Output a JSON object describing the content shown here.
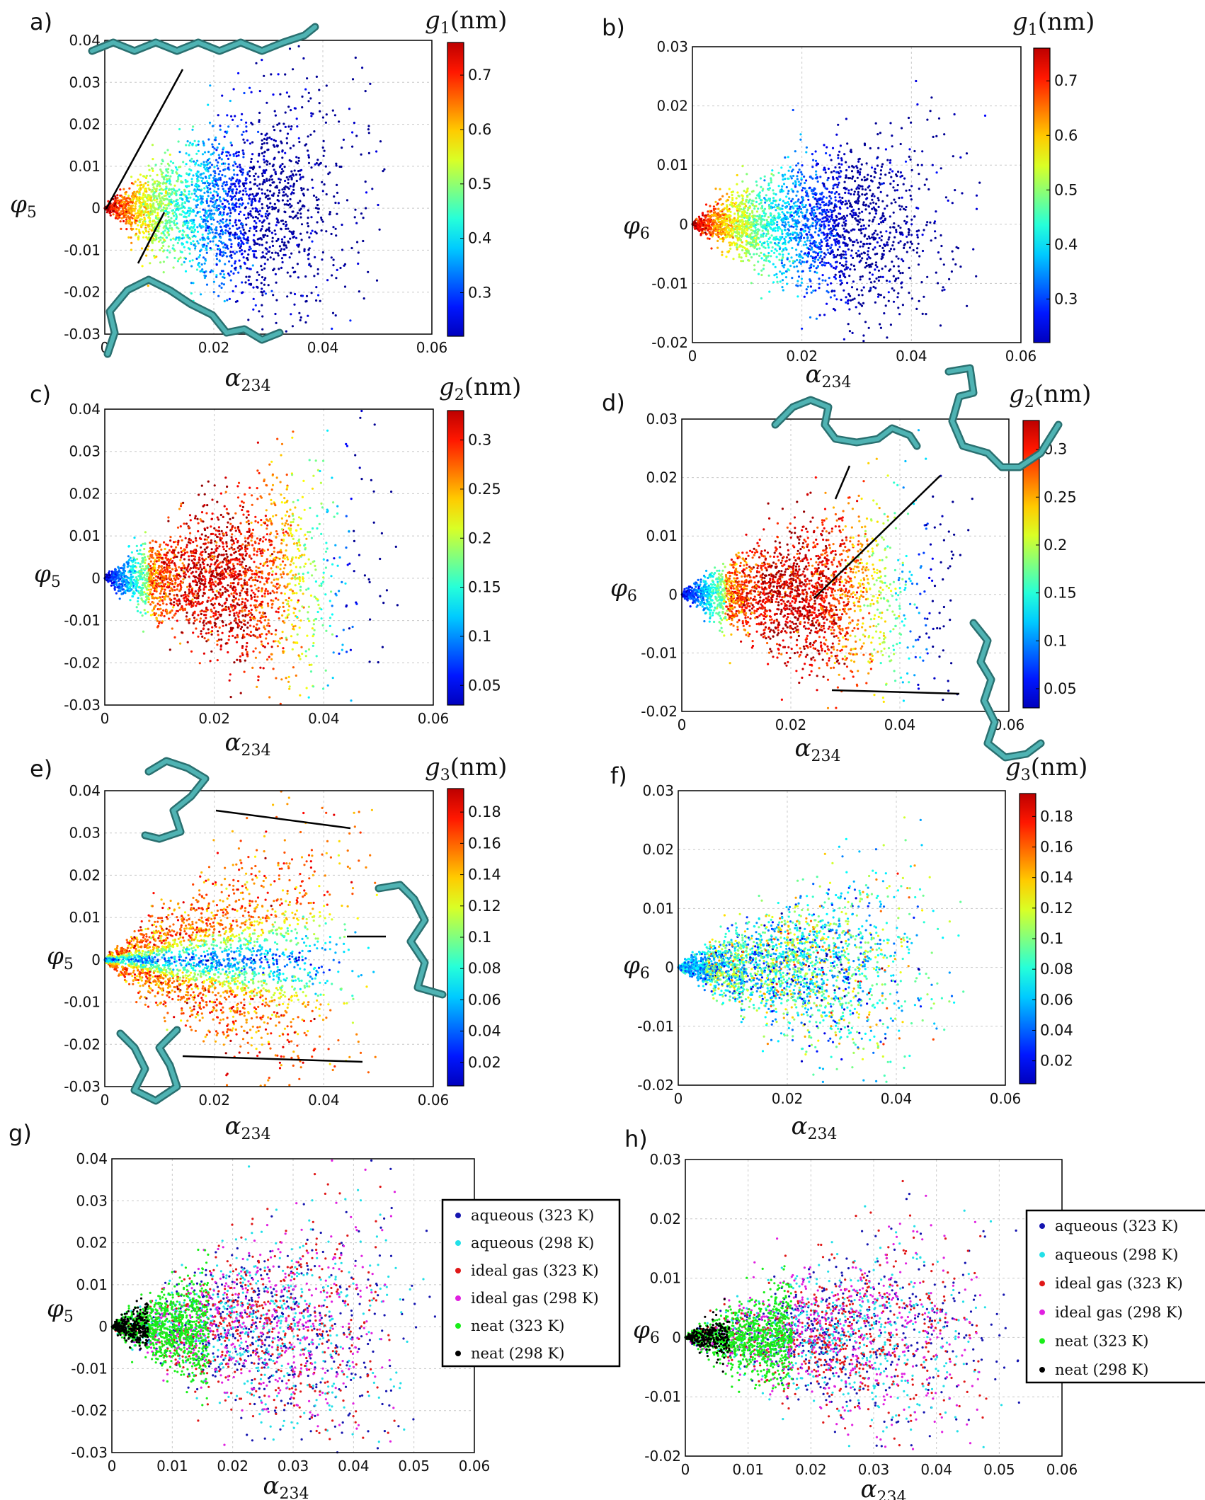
{
  "figure": {
    "panels": [
      {
        "id": "a",
        "label": "a)",
        "y_symbol": "φ",
        "y_sub": "5",
        "x_symbol": "α",
        "x_sub": "234",
        "colorbar": {
          "symbol": "g",
          "sub": "1",
          "unit": "(nm)",
          "ticks": [
            "0.3",
            "0.4",
            "0.5",
            "0.6",
            "0.7"
          ]
        },
        "y_ticks": [
          "0.04",
          "0.03",
          "0.02",
          "0.01",
          "0",
          "-0.01",
          "-0.02",
          "-0.03"
        ],
        "x_ticks": [
          "0",
          "0.02",
          "0.04",
          "0.06"
        ]
      },
      {
        "id": "b",
        "label": "b)",
        "y_symbol": "φ",
        "y_sub": "6",
        "x_symbol": "α",
        "x_sub": "234",
        "colorbar": {
          "symbol": "g",
          "sub": "1",
          "unit": "(nm)",
          "ticks": [
            "0.3",
            "0.4",
            "0.5",
            "0.6",
            "0.7"
          ]
        },
        "y_ticks": [
          "0.03",
          "0.02",
          "0.01",
          "0",
          "-0.01",
          "-0.02"
        ],
        "x_ticks": [
          "0",
          "0.02",
          "0.04",
          "0.06"
        ]
      },
      {
        "id": "c",
        "label": "c)",
        "y_symbol": "φ",
        "y_sub": "5",
        "x_symbol": "α",
        "x_sub": "234",
        "colorbar": {
          "symbol": "g",
          "sub": "2",
          "unit": "(nm)",
          "ticks": [
            "0.05",
            "0.1",
            "0.15",
            "0.2",
            "0.25",
            "0.3"
          ]
        },
        "y_ticks": [
          "0.04",
          "0.03",
          "0.02",
          "0.01",
          "0",
          "-0.01",
          "-0.02",
          "-0.03"
        ],
        "x_ticks": [
          "0",
          "0.02",
          "0.04",
          "0.06"
        ]
      },
      {
        "id": "d",
        "label": "d)",
        "y_symbol": "φ",
        "y_sub": "6",
        "x_symbol": "α",
        "x_sub": "234",
        "colorbar": {
          "symbol": "g",
          "sub": "2",
          "unit": "(nm)",
          "ticks": [
            "0.05",
            "0.1",
            "0.15",
            "0.2",
            "0.25",
            "0.3"
          ]
        },
        "y_ticks": [
          "0.03",
          "0.02",
          "0.01",
          "0",
          "-0.01",
          "-0.02"
        ],
        "x_ticks": [
          "0",
          "0.02",
          "0.04",
          "0.06"
        ]
      },
      {
        "id": "e",
        "label": "e)",
        "y_symbol": "φ",
        "y_sub": "5",
        "x_symbol": "α",
        "x_sub": "234",
        "colorbar": {
          "symbol": "g",
          "sub": "3",
          "unit": "(nm)",
          "ticks": [
            "0.02",
            "0.04",
            "0.06",
            "0.08",
            "0.1",
            "0.12",
            "0.14",
            "0.16",
            "0.18"
          ]
        },
        "y_ticks": [
          "0.04",
          "0.03",
          "0.02",
          "0.01",
          "0",
          "-0.01",
          "-0.02",
          "-0.03"
        ],
        "x_ticks": [
          "0",
          "0.02",
          "0.04",
          "0.06"
        ]
      },
      {
        "id": "f",
        "label": "f)",
        "y_symbol": "φ",
        "y_sub": "6",
        "x_symbol": "α",
        "x_sub": "234",
        "colorbar": {
          "symbol": "g",
          "sub": "3",
          "unit": "(nm)",
          "ticks": [
            "0.02",
            "0.04",
            "0.06",
            "0.08",
            "0.1",
            "0.12",
            "0.14",
            "0.16",
            "0.18"
          ]
        },
        "y_ticks": [
          "0.03",
          "0.02",
          "0.01",
          "0",
          "-0.01",
          "-0.02"
        ],
        "x_ticks": [
          "0",
          "0.02",
          "0.04",
          "0.06"
        ]
      },
      {
        "id": "g",
        "label": "g)",
        "y_symbol": "φ",
        "y_sub": "5",
        "x_symbol": "α",
        "x_sub": "234",
        "legend": [
          "aqueous (323 K)",
          "aqueous (298 K)",
          "ideal gas (323 K)",
          "ideal gas (298 K)",
          "neat (323 K)",
          "neat (298 K)"
        ],
        "y_ticks": [
          "0.04",
          "0.03",
          "0.02",
          "0.01",
          "0",
          "-0.01",
          "-0.02",
          "-0.03"
        ],
        "x_ticks": [
          "0",
          "0.01",
          "0.02",
          "0.03",
          "0.04",
          "0.05",
          "0.06"
        ]
      },
      {
        "id": "h",
        "label": "h)",
        "y_symbol": "φ",
        "y_sub": "6",
        "x_symbol": "α",
        "x_sub": "234",
        "legend": [
          "aqueous (323 K)",
          "aqueous (298 K)",
          "ideal gas (323 K)",
          "ideal gas (298 K)",
          "neat (323 K)",
          "neat (298 K)"
        ],
        "y_ticks": [
          "0.03",
          "0.02",
          "0.01",
          "0",
          "-0.01",
          "-0.02"
        ],
        "x_ticks": [
          "0",
          "0.01",
          "0.02",
          "0.03",
          "0.04",
          "0.05",
          "0.06"
        ]
      }
    ]
  },
  "chart_data": [
    {
      "type": "scatter",
      "panel": "a",
      "xlabel": "α234",
      "ylabel": "φ5",
      "xlim": [
        0,
        0.06
      ],
      "ylim": [
        -0.03,
        0.04
      ],
      "grid": true,
      "color_variable": "g1 (nm)",
      "color_range": [
        0.22,
        0.76
      ],
      "colormap": "jet",
      "color_trend": "decreasing_with_x",
      "envelope": {
        "x_max": 0.052,
        "spread_at_max": 0.032
      }
    },
    {
      "type": "scatter",
      "panel": "b",
      "xlabel": "α234",
      "ylabel": "φ6",
      "xlim": [
        0,
        0.06
      ],
      "ylim": [
        -0.02,
        0.03
      ],
      "grid": true,
      "color_variable": "g1 (nm)",
      "color_range": [
        0.22,
        0.76
      ],
      "colormap": "jet",
      "color_trend": "decreasing_with_x",
      "envelope": {
        "x_max": 0.054,
        "spread_at_max": 0.019
      }
    },
    {
      "type": "scatter",
      "panel": "c",
      "xlabel": "α234",
      "ylabel": "φ5",
      "xlim": [
        0,
        0.06
      ],
      "ylim": [
        -0.03,
        0.04
      ],
      "grid": true,
      "color_variable": "g2 (nm)",
      "color_range": [
        0.03,
        0.33
      ],
      "colormap": "jet",
      "color_trend": "peak_at_x_0.02",
      "envelope": {
        "x_max": 0.054,
        "spread_at_max": 0.03
      }
    },
    {
      "type": "scatter",
      "panel": "d",
      "xlabel": "α234",
      "ylabel": "φ6",
      "xlim": [
        0,
        0.06
      ],
      "ylim": [
        -0.02,
        0.03
      ],
      "grid": true,
      "color_variable": "g2 (nm)",
      "color_range": [
        0.03,
        0.33
      ],
      "colormap": "jet",
      "color_trend": "peak_at_x_0.02",
      "envelope": {
        "x_max": 0.054,
        "spread_at_max": 0.019
      }
    },
    {
      "type": "scatter",
      "panel": "e",
      "xlabel": "α234",
      "ylabel": "φ5",
      "xlim": [
        0,
        0.06
      ],
      "ylim": [
        -0.03,
        0.04
      ],
      "grid": true,
      "color_variable": "g3 (nm)",
      "color_range": [
        0.005,
        0.195
      ],
      "colormap": "jet",
      "color_trend": "increasing_with_abs_y",
      "envelope": {
        "x_max": 0.05,
        "spread_at_max": 0.032
      }
    },
    {
      "type": "scatter",
      "panel": "f",
      "xlabel": "α234",
      "ylabel": "φ6",
      "xlim": [
        0,
        0.06
      ],
      "ylim": [
        -0.02,
        0.03
      ],
      "grid": true,
      "color_variable": "g3 (nm)",
      "color_range": [
        0.005,
        0.195
      ],
      "colormap": "jet",
      "color_trend": "mixed",
      "envelope": {
        "x_max": 0.054,
        "spread_at_max": 0.019
      }
    },
    {
      "type": "scatter",
      "panel": "g",
      "xlabel": "α234",
      "ylabel": "φ5",
      "xlim": [
        0,
        0.06
      ],
      "ylim": [
        -0.03,
        0.04
      ],
      "grid": true,
      "legend_position": "right",
      "series": [
        {
          "name": "aqueous (323 K)",
          "color": "#1515b0",
          "x_range": [
            0,
            0.055
          ]
        },
        {
          "name": "aqueous (298 K)",
          "color": "#22e0e8",
          "x_range": [
            0,
            0.052
          ]
        },
        {
          "name": "ideal gas (323 K)",
          "color": "#e01818",
          "x_range": [
            0,
            0.048
          ]
        },
        {
          "name": "ideal gas (298 K)",
          "color": "#e020e0",
          "x_range": [
            0,
            0.047
          ]
        },
        {
          "name": "neat (323 K)",
          "color": "#18ee18",
          "x_range": [
            0,
            0.016
          ]
        },
        {
          "name": "neat (298 K)",
          "color": "#000000",
          "x_range": [
            0,
            0.006
          ]
        }
      ]
    },
    {
      "type": "scatter",
      "panel": "h",
      "xlabel": "α234",
      "ylabel": "φ6",
      "xlim": [
        0,
        0.06
      ],
      "ylim": [
        -0.02,
        0.03
      ],
      "grid": true,
      "legend_position": "right",
      "series": [
        {
          "name": "aqueous (323 K)",
          "color": "#1515b0",
          "x_range": [
            0,
            0.055
          ]
        },
        {
          "name": "aqueous (298 K)",
          "color": "#22e0e8",
          "x_range": [
            0,
            0.052
          ]
        },
        {
          "name": "ideal gas (323 K)",
          "color": "#e01818",
          "x_range": [
            0,
            0.048
          ]
        },
        {
          "name": "ideal gas (298 K)",
          "color": "#e020e0",
          "x_range": [
            0,
            0.047
          ]
        },
        {
          "name": "neat (323 K)",
          "color": "#18ee18",
          "x_range": [
            0,
            0.017
          ]
        },
        {
          "name": "neat (298 K)",
          "color": "#000000",
          "x_range": [
            0,
            0.007
          ]
        }
      ]
    }
  ]
}
